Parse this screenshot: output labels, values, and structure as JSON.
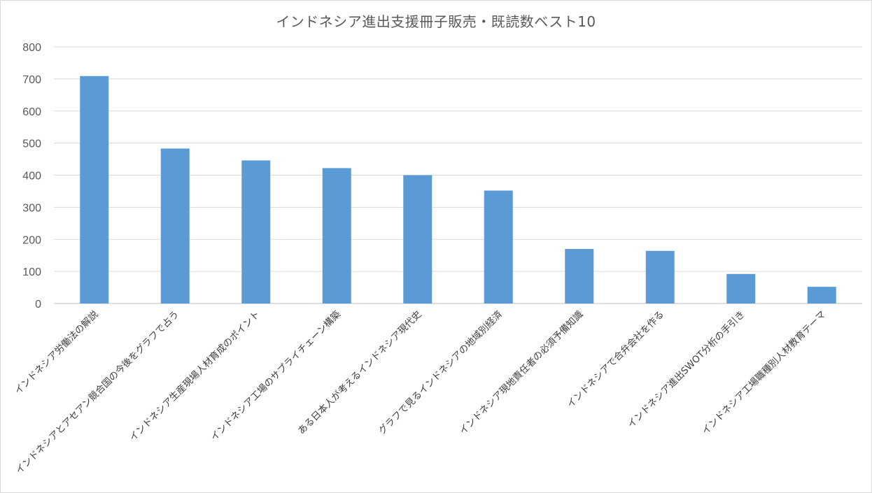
{
  "chart_data": {
    "type": "bar",
    "title": "インドネシア進出支援冊子販売・既読数ベスト10",
    "xlabel": "",
    "ylabel": "",
    "ylim": [
      0,
      800
    ],
    "yticks": [
      0,
      100,
      200,
      300,
      400,
      500,
      600,
      700,
      800
    ],
    "grid": true,
    "legend": "none",
    "categories": [
      "インドネシア労働法の解説",
      "インドネシアとアセアン競合国の今後をグラフで占う",
      "インドネシア生産現場人材育成のポイント",
      "インドネシア工場のサプライチェーン構築",
      "ある日本人が考えるインドネシア現代史",
      "グラフで見るインドネシアの地域別経済",
      "インドネシア現地責任者の必須予備知識",
      "インドネシアで合弁会社を作る",
      "インドネシア進出SWOT分析の手引き",
      "インドネシア工場職種別人材教育テーマ"
    ],
    "values": [
      709,
      483,
      446,
      422,
      400,
      352,
      170,
      164,
      92,
      52
    ],
    "colors": {
      "bar": "#5b9bd5",
      "grid": "#d9d9d9",
      "axis": "#bfbfbf",
      "text": "#595959"
    }
  }
}
